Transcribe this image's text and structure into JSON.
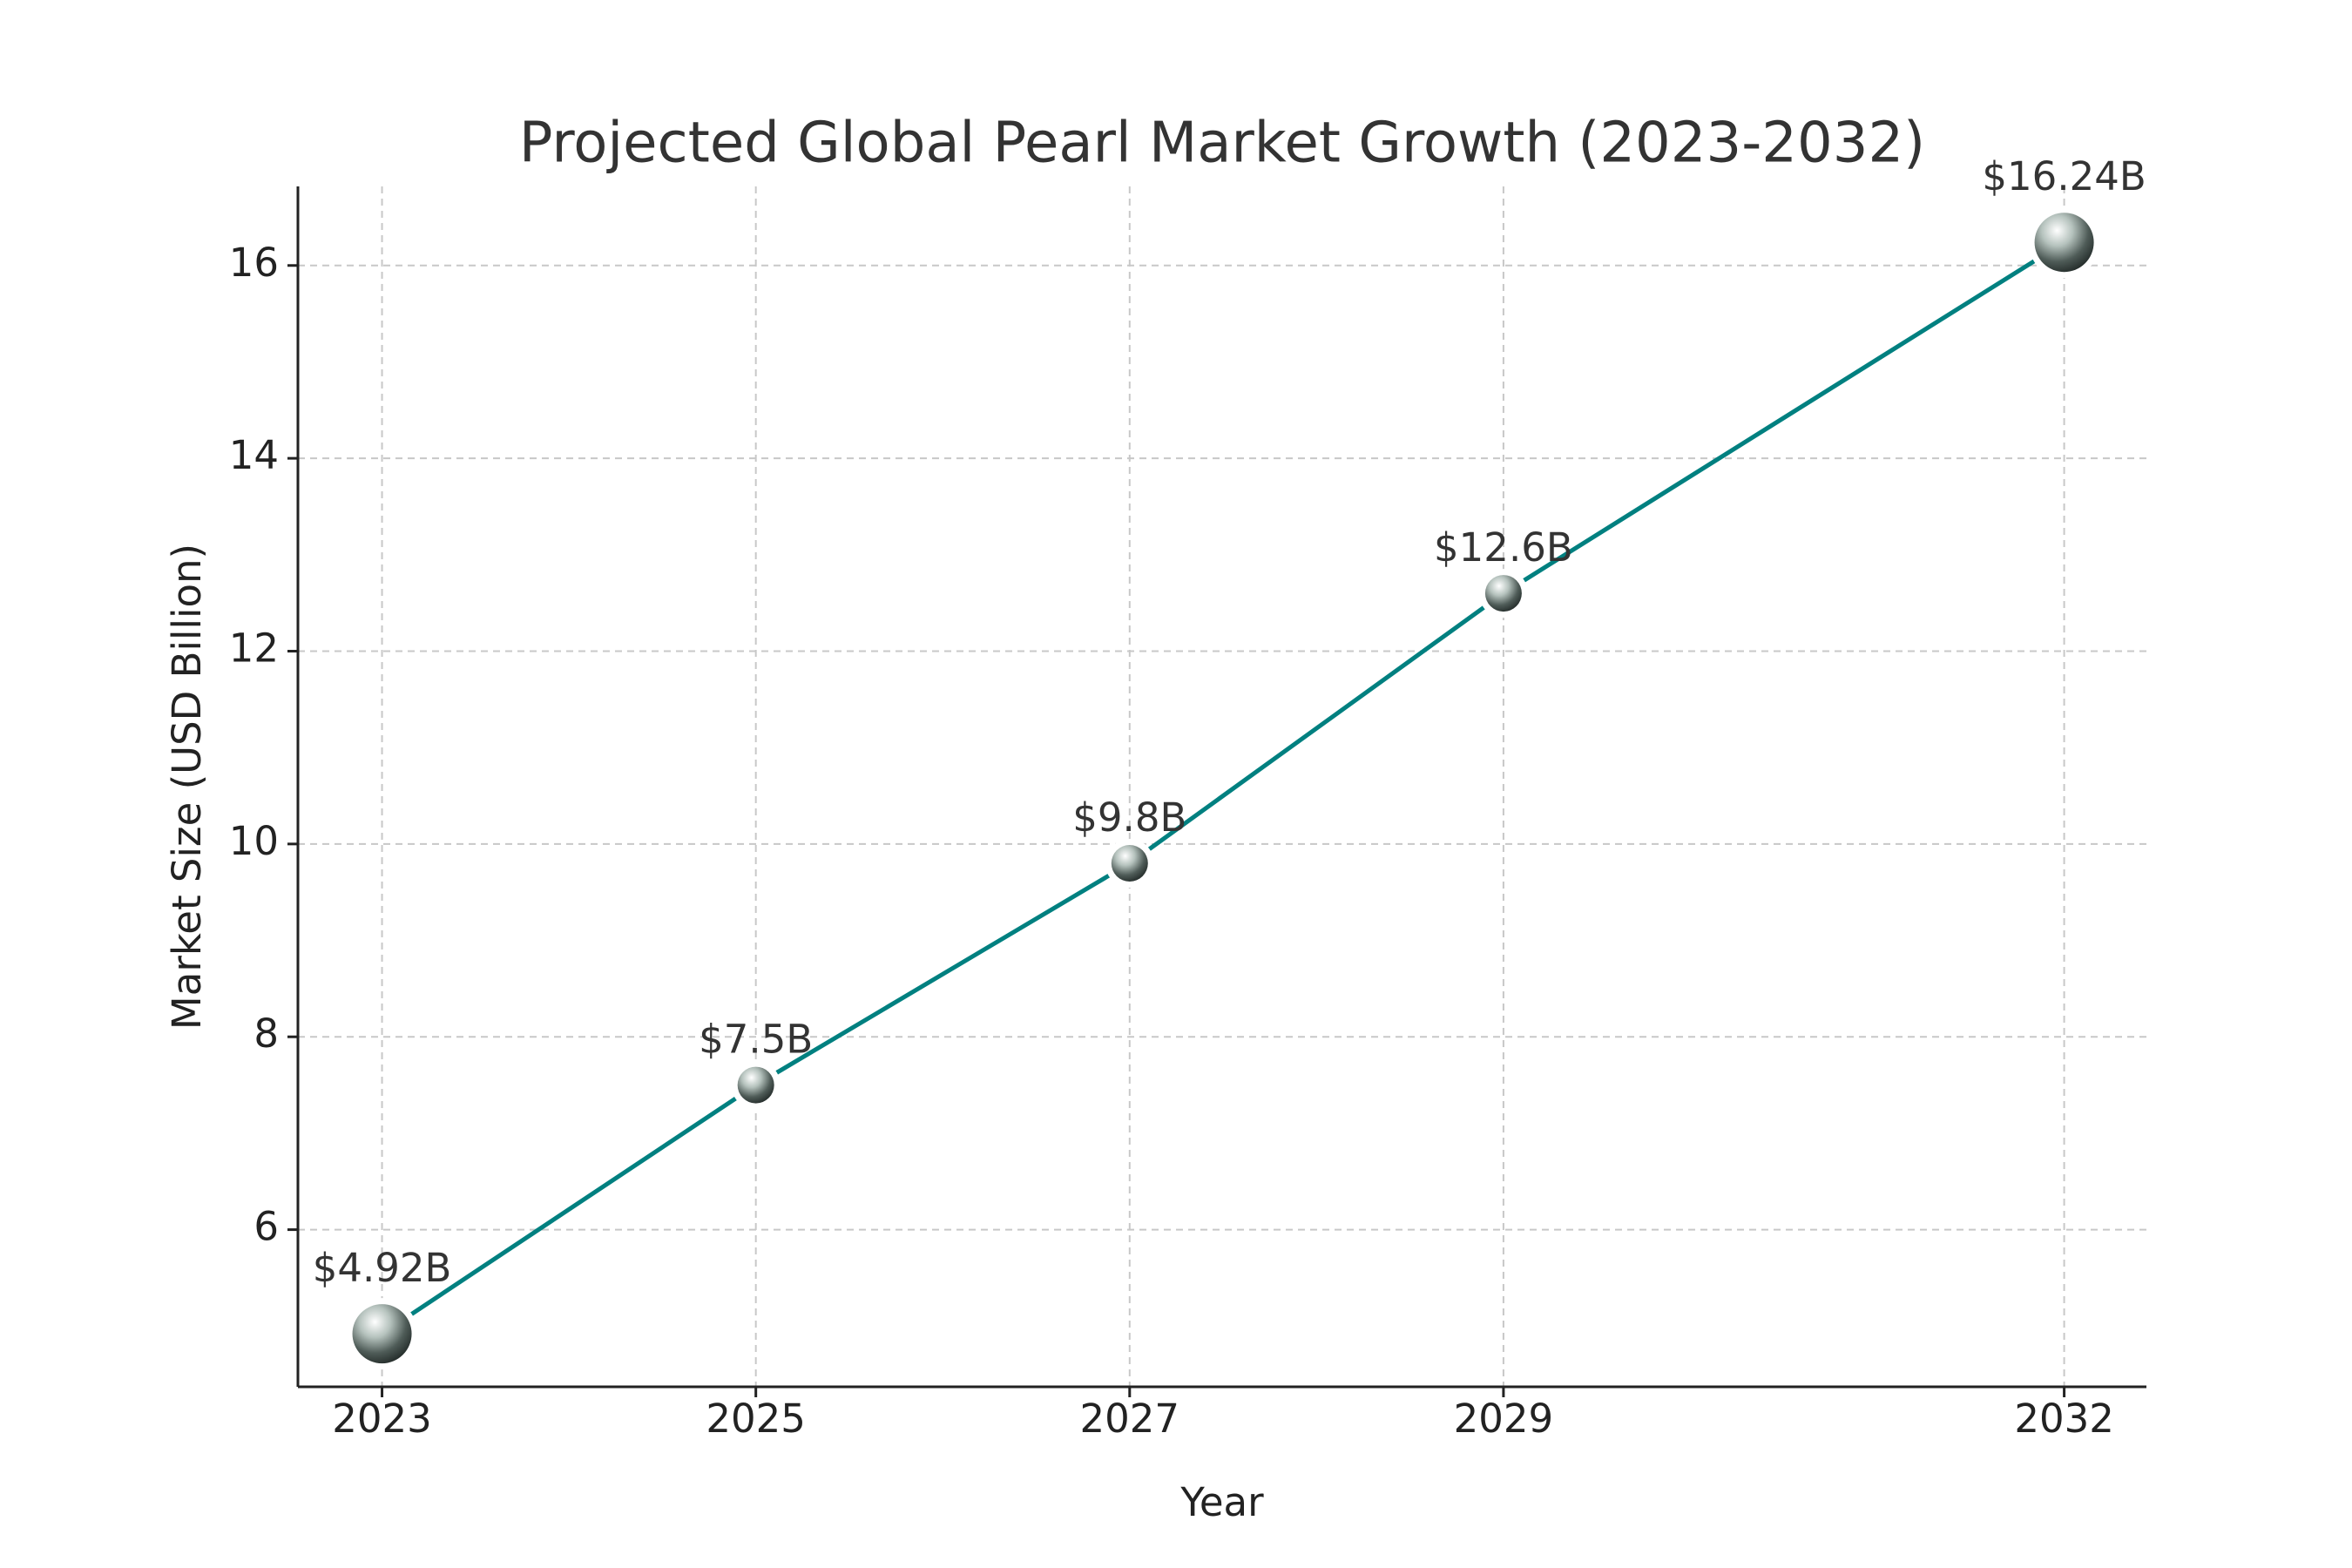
{
  "chart_data": {
    "type": "line",
    "title": "Projected Global Pearl Market Growth (2023-2032)",
    "xlabel": "Year",
    "ylabel": "Market Size (USD Billion)",
    "x": [
      2023,
      2025,
      2027,
      2029,
      2032
    ],
    "values": [
      4.92,
      7.5,
      9.8,
      12.6,
      16.24
    ],
    "value_labels": [
      "$4.92B",
      "$7.5B",
      "$9.8B",
      "$12.6B",
      "$16.24B"
    ],
    "color": "#008080",
    "xlim": [
      2022.55,
      2032.44
    ],
    "ylim": [
      4.37,
      16.82
    ],
    "xticks": [
      2023,
      2025,
      2027,
      2029,
      2032
    ],
    "yticks": [
      6,
      8,
      10,
      12,
      14,
      16
    ],
    "grid": true
  }
}
